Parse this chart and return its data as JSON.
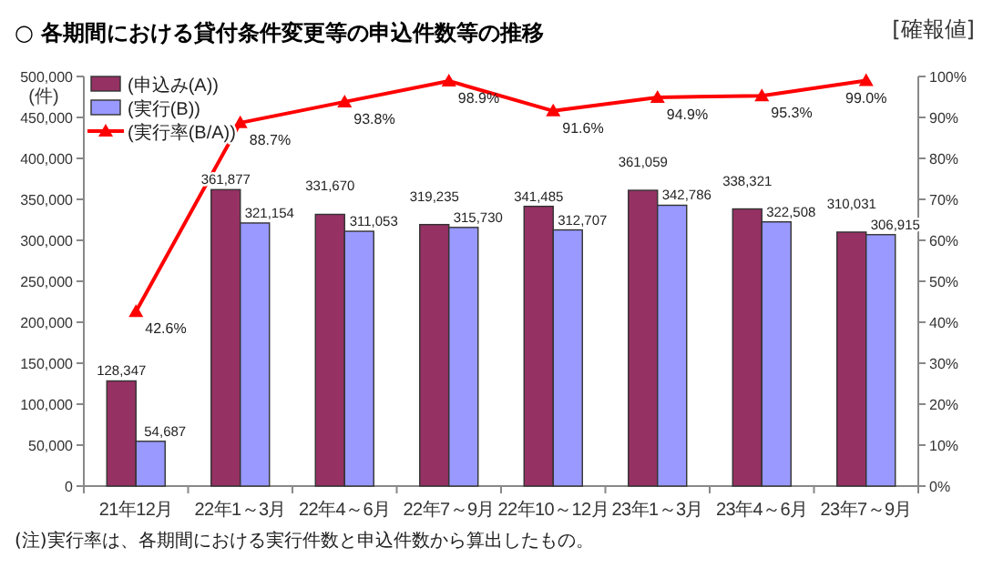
{
  "chart_data": {
    "type": "bar",
    "title": "○ 各期間における貸付条件変更等の申込件数等の推移",
    "ylabel": "(件)",
    "categories": [
      "21年12月",
      "22年1～3月",
      "22年4～6月",
      "22年7～9月",
      "22年10～12月",
      "23年1～3月",
      "23年4～6月",
      "23年7～9月"
    ],
    "series": [
      {
        "name": "(申込み(A))",
        "color": "#953163",
        "values": [
          128347,
          361877,
          331670,
          319235,
          341485,
          361059,
          338321,
          310031
        ],
        "value_labels": [
          "128,347",
          "361,877",
          "331,670",
          "319,235",
          "341,485",
          "361,059",
          "338,321",
          "310,031"
        ]
      },
      {
        "name": "(実行(B))",
        "color": "#9999ff",
        "values": [
          54687,
          321154,
          311053,
          315730,
          312707,
          342786,
          322508,
          306915
        ],
        "value_labels": [
          "54,687",
          "321,154",
          "311,053",
          "315,730",
          "312,707",
          "342,786",
          "322,508",
          "306,915"
        ]
      },
      {
        "name": "(実行率(B/A))",
        "type": "line",
        "axis": "y2",
        "marker": "triangle",
        "color": "#ff0000",
        "values": [
          42.6,
          88.7,
          93.8,
          98.9,
          91.6,
          94.9,
          95.3,
          99.0
        ],
        "value_labels": [
          "42.6%",
          "88.7%",
          "93.8%",
          "98.9%",
          "91.6%",
          "94.9%",
          "95.3%",
          "99.0%"
        ]
      }
    ],
    "ylim": [
      0,
      500000
    ],
    "yticks": [
      {
        "value": 0,
        "label": "0"
      },
      {
        "value": 50000,
        "label": "50,000"
      },
      {
        "value": 100000,
        "label": "100,000"
      },
      {
        "value": 150000,
        "label": "150,000"
      },
      {
        "value": 200000,
        "label": "200,000"
      },
      {
        "value": 250000,
        "label": "250,000"
      },
      {
        "value": 300000,
        "label": "300,000"
      },
      {
        "value": 350000,
        "label": "350,000"
      },
      {
        "value": 400000,
        "label": "400,000"
      },
      {
        "value": 450000,
        "label": "450,000"
      },
      {
        "value": 500000,
        "label": "500,000"
      }
    ],
    "y2lim": [
      0,
      100
    ],
    "y2ticks": [
      {
        "value": 0,
        "label": "0%"
      },
      {
        "value": 10,
        "label": "10%"
      },
      {
        "value": 20,
        "label": "20%"
      },
      {
        "value": 30,
        "label": "30%"
      },
      {
        "value": 40,
        "label": "40%"
      },
      {
        "value": 50,
        "label": "50%"
      },
      {
        "value": 60,
        "label": "60%"
      },
      {
        "value": 70,
        "label": "70%"
      },
      {
        "value": 80,
        "label": "80%"
      },
      {
        "value": 90,
        "label": "90%"
      },
      {
        "value": 100,
        "label": "100%"
      }
    ],
    "legend": "top left",
    "grid": false,
    "annotations": [
      "[確報値]",
      "(注)実行率は、各期間における実行件数と申込件数から算出したもの。"
    ]
  }
}
